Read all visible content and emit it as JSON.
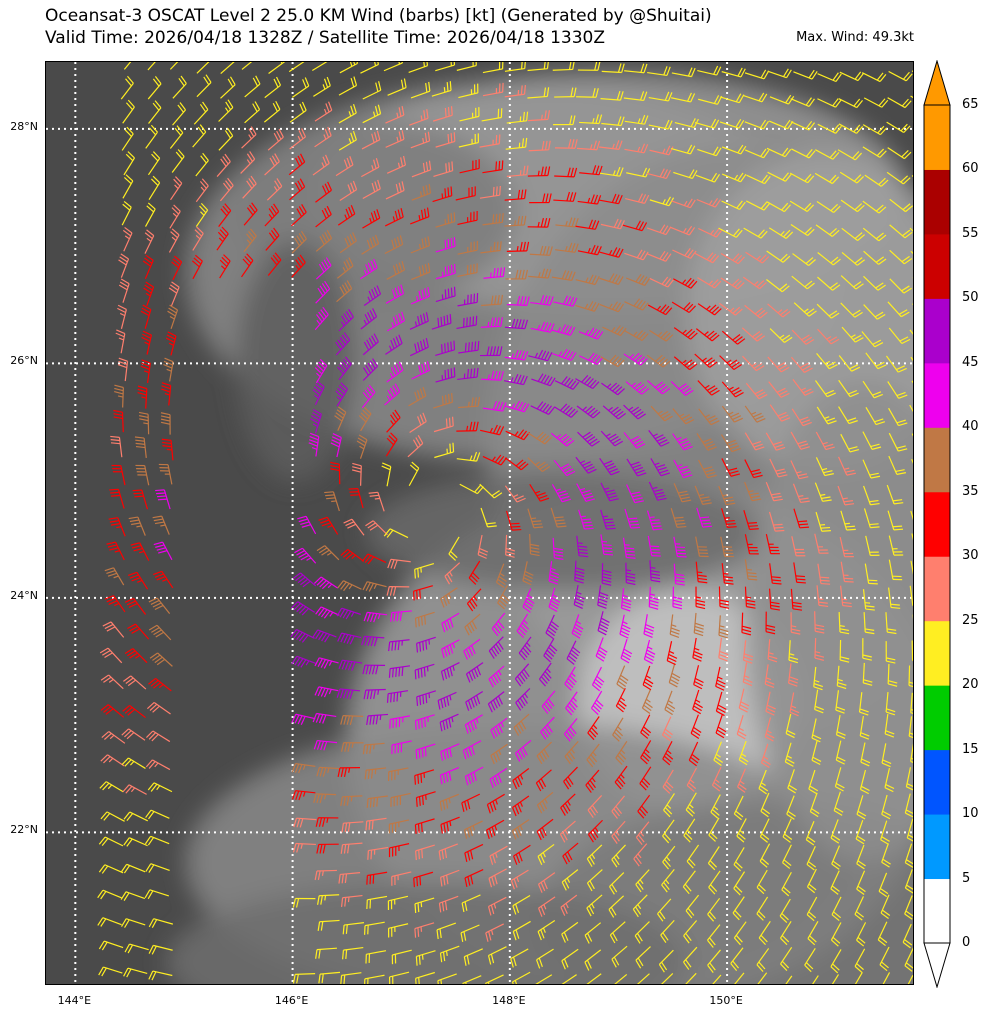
{
  "title": {
    "line1": "Oceansat-3 OSCAT Level 2 25.0 KM Wind (barbs) [kt] (Generated by @Shuitai)",
    "line2": "Valid Time: 2026/04/18 1328Z / Satellite Time: 2026/04/18 1330Z",
    "max_wind": "Max. Wind: 49.3kt"
  },
  "map": {
    "lon_range": [
      143.73,
      151.73
    ],
    "lat_range": [
      20.69,
      28.57
    ],
    "background": "#4a4a4a",
    "grid_lines": "white dotted",
    "latitude_ticks": [
      {
        "value": 28,
        "label": "28°N"
      },
      {
        "value": 26,
        "label": "26°N"
      },
      {
        "value": 24,
        "label": "24°N"
      },
      {
        "value": 22,
        "label": "22°N"
      }
    ],
    "longitude_ticks": [
      {
        "value": 144,
        "label": "144°E"
      },
      {
        "value": 146,
        "label": "146°E"
      },
      {
        "value": 148,
        "label": "148°E"
      },
      {
        "value": 150,
        "label": "150°E"
      }
    ]
  },
  "colorbar": {
    "unit": "kt",
    "min": 0,
    "max": 65,
    "extend": "both",
    "bins": [
      {
        "from": 0,
        "to": 5,
        "color": "#ffffff"
      },
      {
        "from": 5,
        "to": 10,
        "color": "#0099ff"
      },
      {
        "from": 10,
        "to": 15,
        "color": "#0055ff"
      },
      {
        "from": 15,
        "to": 20,
        "color": "#00cc00"
      },
      {
        "from": 20,
        "to": 25,
        "color": "#ffee22"
      },
      {
        "from": 25,
        "to": 30,
        "color": "#ff7f6e"
      },
      {
        "from": 30,
        "to": 35,
        "color": "#ff0000"
      },
      {
        "from": 35,
        "to": 40,
        "color": "#c07845"
      },
      {
        "from": 40,
        "to": 45,
        "color": "#ee00ee"
      },
      {
        "from": 45,
        "to": 50,
        "color": "#aa00cc"
      },
      {
        "from": 50,
        "to": 55,
        "color": "#cc0000"
      },
      {
        "from": 55,
        "to": 60,
        "color": "#aa0000"
      },
      {
        "from": 60,
        "to": 65,
        "color": "#ff9900"
      }
    ],
    "under_color": "#ffffff",
    "over_color": "#ff9900",
    "tick_labels": [
      "0",
      "5",
      "10",
      "15",
      "20",
      "25",
      "30",
      "35",
      "40",
      "45",
      "50",
      "55",
      "60",
      "65"
    ]
  },
  "wind_field": {
    "center_lon": 147.3,
    "center_lat": 24.75,
    "spacing_deg": 0.22,
    "rotation": "cyclonic (counter-clockwise, northern hemisphere)",
    "max_speed_kt": 49.3,
    "eye_radius_deg": 0.25,
    "rmw_deg": 1.3,
    "swath_west_lon": 144.4,
    "swath_gap_lon": [
      145.0,
      146.2
    ]
  }
}
